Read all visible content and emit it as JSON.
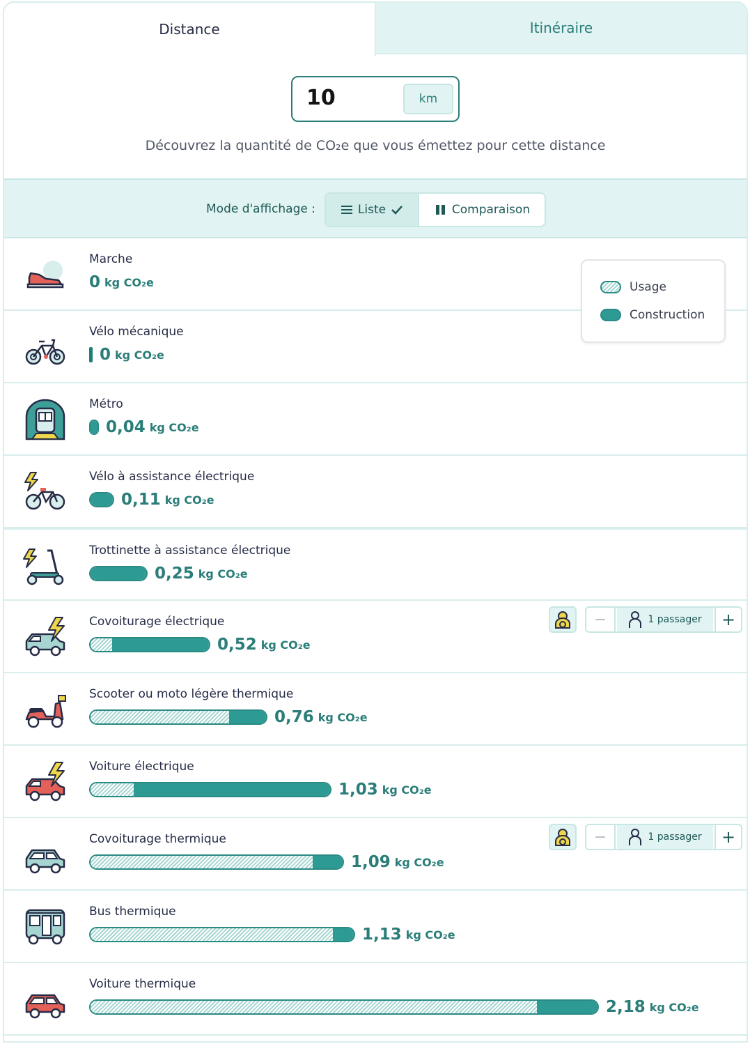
{
  "tabs": [
    {
      "label": "Distance"
    },
    {
      "label": "Itinéraire"
    }
  ],
  "distance": {
    "value": "10",
    "unit": "km",
    "description": "Découvrez la quantité de CO₂e que vous émettez pour cette distance"
  },
  "display_mode": {
    "label": "Mode d'affichage :",
    "options": [
      {
        "label": "Liste",
        "selected": true,
        "icon": "list-icon"
      },
      {
        "label": "Comparaison",
        "selected": false,
        "icon": "bar-chart-icon"
      }
    ]
  },
  "legend": {
    "usage": "Usage",
    "construction": "Construction"
  },
  "unit_label": "kg CO₂e",
  "colors": {
    "accent": "#2a7d78",
    "bar_construction": "#2d9b93",
    "bar_usage_stripe": "#a7d6d2",
    "tab_bg": "#e1f3f2"
  },
  "modes": [
    {
      "name": "Marche",
      "value": "0",
      "total": 0,
      "usage_fraction": 0,
      "icon": "shoe-icon"
    },
    {
      "name": "Vélo mécanique",
      "value": "0",
      "total": 0,
      "usage_fraction": 0,
      "icon": "bike-icon"
    },
    {
      "name": "Métro",
      "value": "0,04",
      "total": 0.04,
      "usage_fraction": 0,
      "icon": "metro-icon"
    },
    {
      "name": "Vélo à assistance électrique",
      "value": "0,11",
      "total": 0.11,
      "usage_fraction": 0,
      "icon": "ebike-icon"
    },
    {
      "name": "Trottinette à assistance électrique",
      "value": "0,25",
      "total": 0.25,
      "usage_fraction": 0,
      "icon": "scooter-icon"
    },
    {
      "name": "Covoiturage électrique",
      "value": "0,52",
      "total": 0.52,
      "usage_fraction": 0.18,
      "icon": "electric-carpool-icon",
      "passengers": "1 passager"
    },
    {
      "name": "Scooter ou moto légère thermique",
      "value": "0,76",
      "total": 0.76,
      "usage_fraction": 0.79,
      "icon": "moped-icon"
    },
    {
      "name": "Voiture électrique",
      "value": "1,03",
      "total": 1.03,
      "usage_fraction": 0.18,
      "icon": "electric-car-icon"
    },
    {
      "name": "Covoiturage thermique",
      "value": "1,09",
      "total": 1.09,
      "usage_fraction": 0.88,
      "icon": "carpool-icon",
      "passengers": "1 passager"
    },
    {
      "name": "Bus thermique",
      "value": "1,13",
      "total": 1.13,
      "usage_fraction": 0.92,
      "icon": "bus-icon"
    },
    {
      "name": "Voiture thermique",
      "value": "2,18",
      "total": 2.18,
      "usage_fraction": 0.88,
      "icon": "car-icon"
    }
  ]
}
